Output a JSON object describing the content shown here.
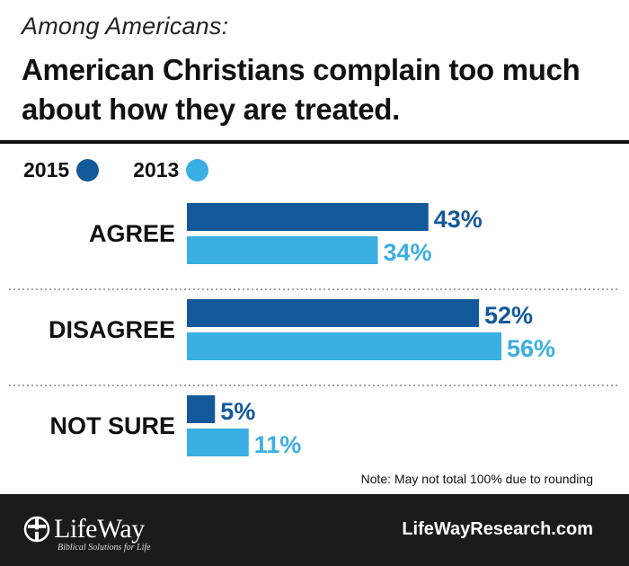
{
  "header": {
    "kicker": "Among Americans:",
    "title": "American Christians complain too much about how they are treated."
  },
  "legend": [
    {
      "label": "2015",
      "color": "#13589b"
    },
    {
      "label": "2013",
      "color": "#3aafe3"
    }
  ],
  "chart_data": {
    "type": "bar",
    "orientation": "horizontal",
    "categories": [
      "AGREE",
      "DISAGREE",
      "NOT SURE"
    ],
    "series": [
      {
        "name": "2015",
        "values": [
          43,
          52,
          5
        ],
        "color": "#13589b",
        "labels": [
          "43%",
          "52%",
          "5%"
        ]
      },
      {
        "name": "2013",
        "values": [
          34,
          56,
          11
        ],
        "color": "#3aafe3",
        "labels": [
          "34%",
          "56%",
          "11%"
        ]
      }
    ],
    "xlim": [
      0,
      100
    ],
    "grid": false,
    "separators": "dotted"
  },
  "note": "Note: May not total 100% due to rounding",
  "footer": {
    "logo_text": "LifeWay",
    "logo_tagline": "Biblical Solutions for Life",
    "site": "LifeWayResearch.com"
  }
}
